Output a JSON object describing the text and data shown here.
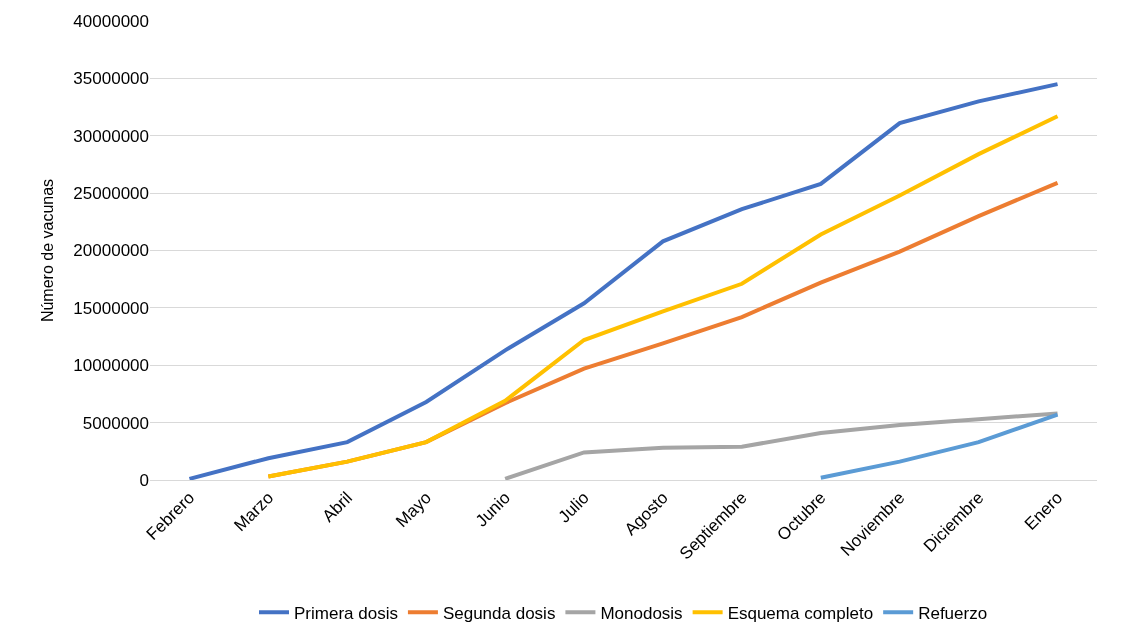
{
  "chart_data": {
    "type": "line",
    "ylabel": "Número de vacunas",
    "categories": [
      "Febrero",
      "Marzo",
      "Abril",
      "Mayo",
      "Junio",
      "Julio",
      "Agosto",
      "Septiembre",
      "Octubre",
      "Noviembre",
      "Diciembre",
      "Enero"
    ],
    "series": [
      {
        "name": "Primera dosis",
        "color": "#4472c4",
        "values": [
          100000,
          1900000,
          3300000,
          6800000,
          11300000,
          15400000,
          20800000,
          23600000,
          25800000,
          31100000,
          33000000,
          34500000
        ]
      },
      {
        "name": "Segunda dosis",
        "color": "#ed7d31",
        "values": [
          null,
          300000,
          1600000,
          3300000,
          6700000,
          9700000,
          11900000,
          14200000,
          17200000,
          19900000,
          23000000,
          25900000
        ]
      },
      {
        "name": "Monodosis",
        "color": "#a5a5a5",
        "values": [
          null,
          null,
          null,
          null,
          100000,
          2400000,
          2800000,
          2900000,
          4100000,
          4800000,
          5300000,
          5800000
        ]
      },
      {
        "name": "Esquema completo",
        "color": "#ffc000",
        "values": [
          null,
          300000,
          1600000,
          3300000,
          6900000,
          12200000,
          14700000,
          17100000,
          21400000,
          24800000,
          28400000,
          31700000
        ]
      },
      {
        "name": "Refuerzo",
        "color": "#5b9bd5",
        "values": [
          null,
          null,
          null,
          null,
          null,
          null,
          null,
          null,
          200000,
          1600000,
          3300000,
          5700000
        ]
      }
    ],
    "ylim": [
      0,
      40000000
    ],
    "yticks": [
      0,
      5000000,
      10000000,
      15000000,
      20000000,
      25000000,
      30000000,
      35000000,
      40000000
    ],
    "grid": "y",
    "legend": "bottom",
    "marker": "none",
    "line_style": "solid"
  }
}
